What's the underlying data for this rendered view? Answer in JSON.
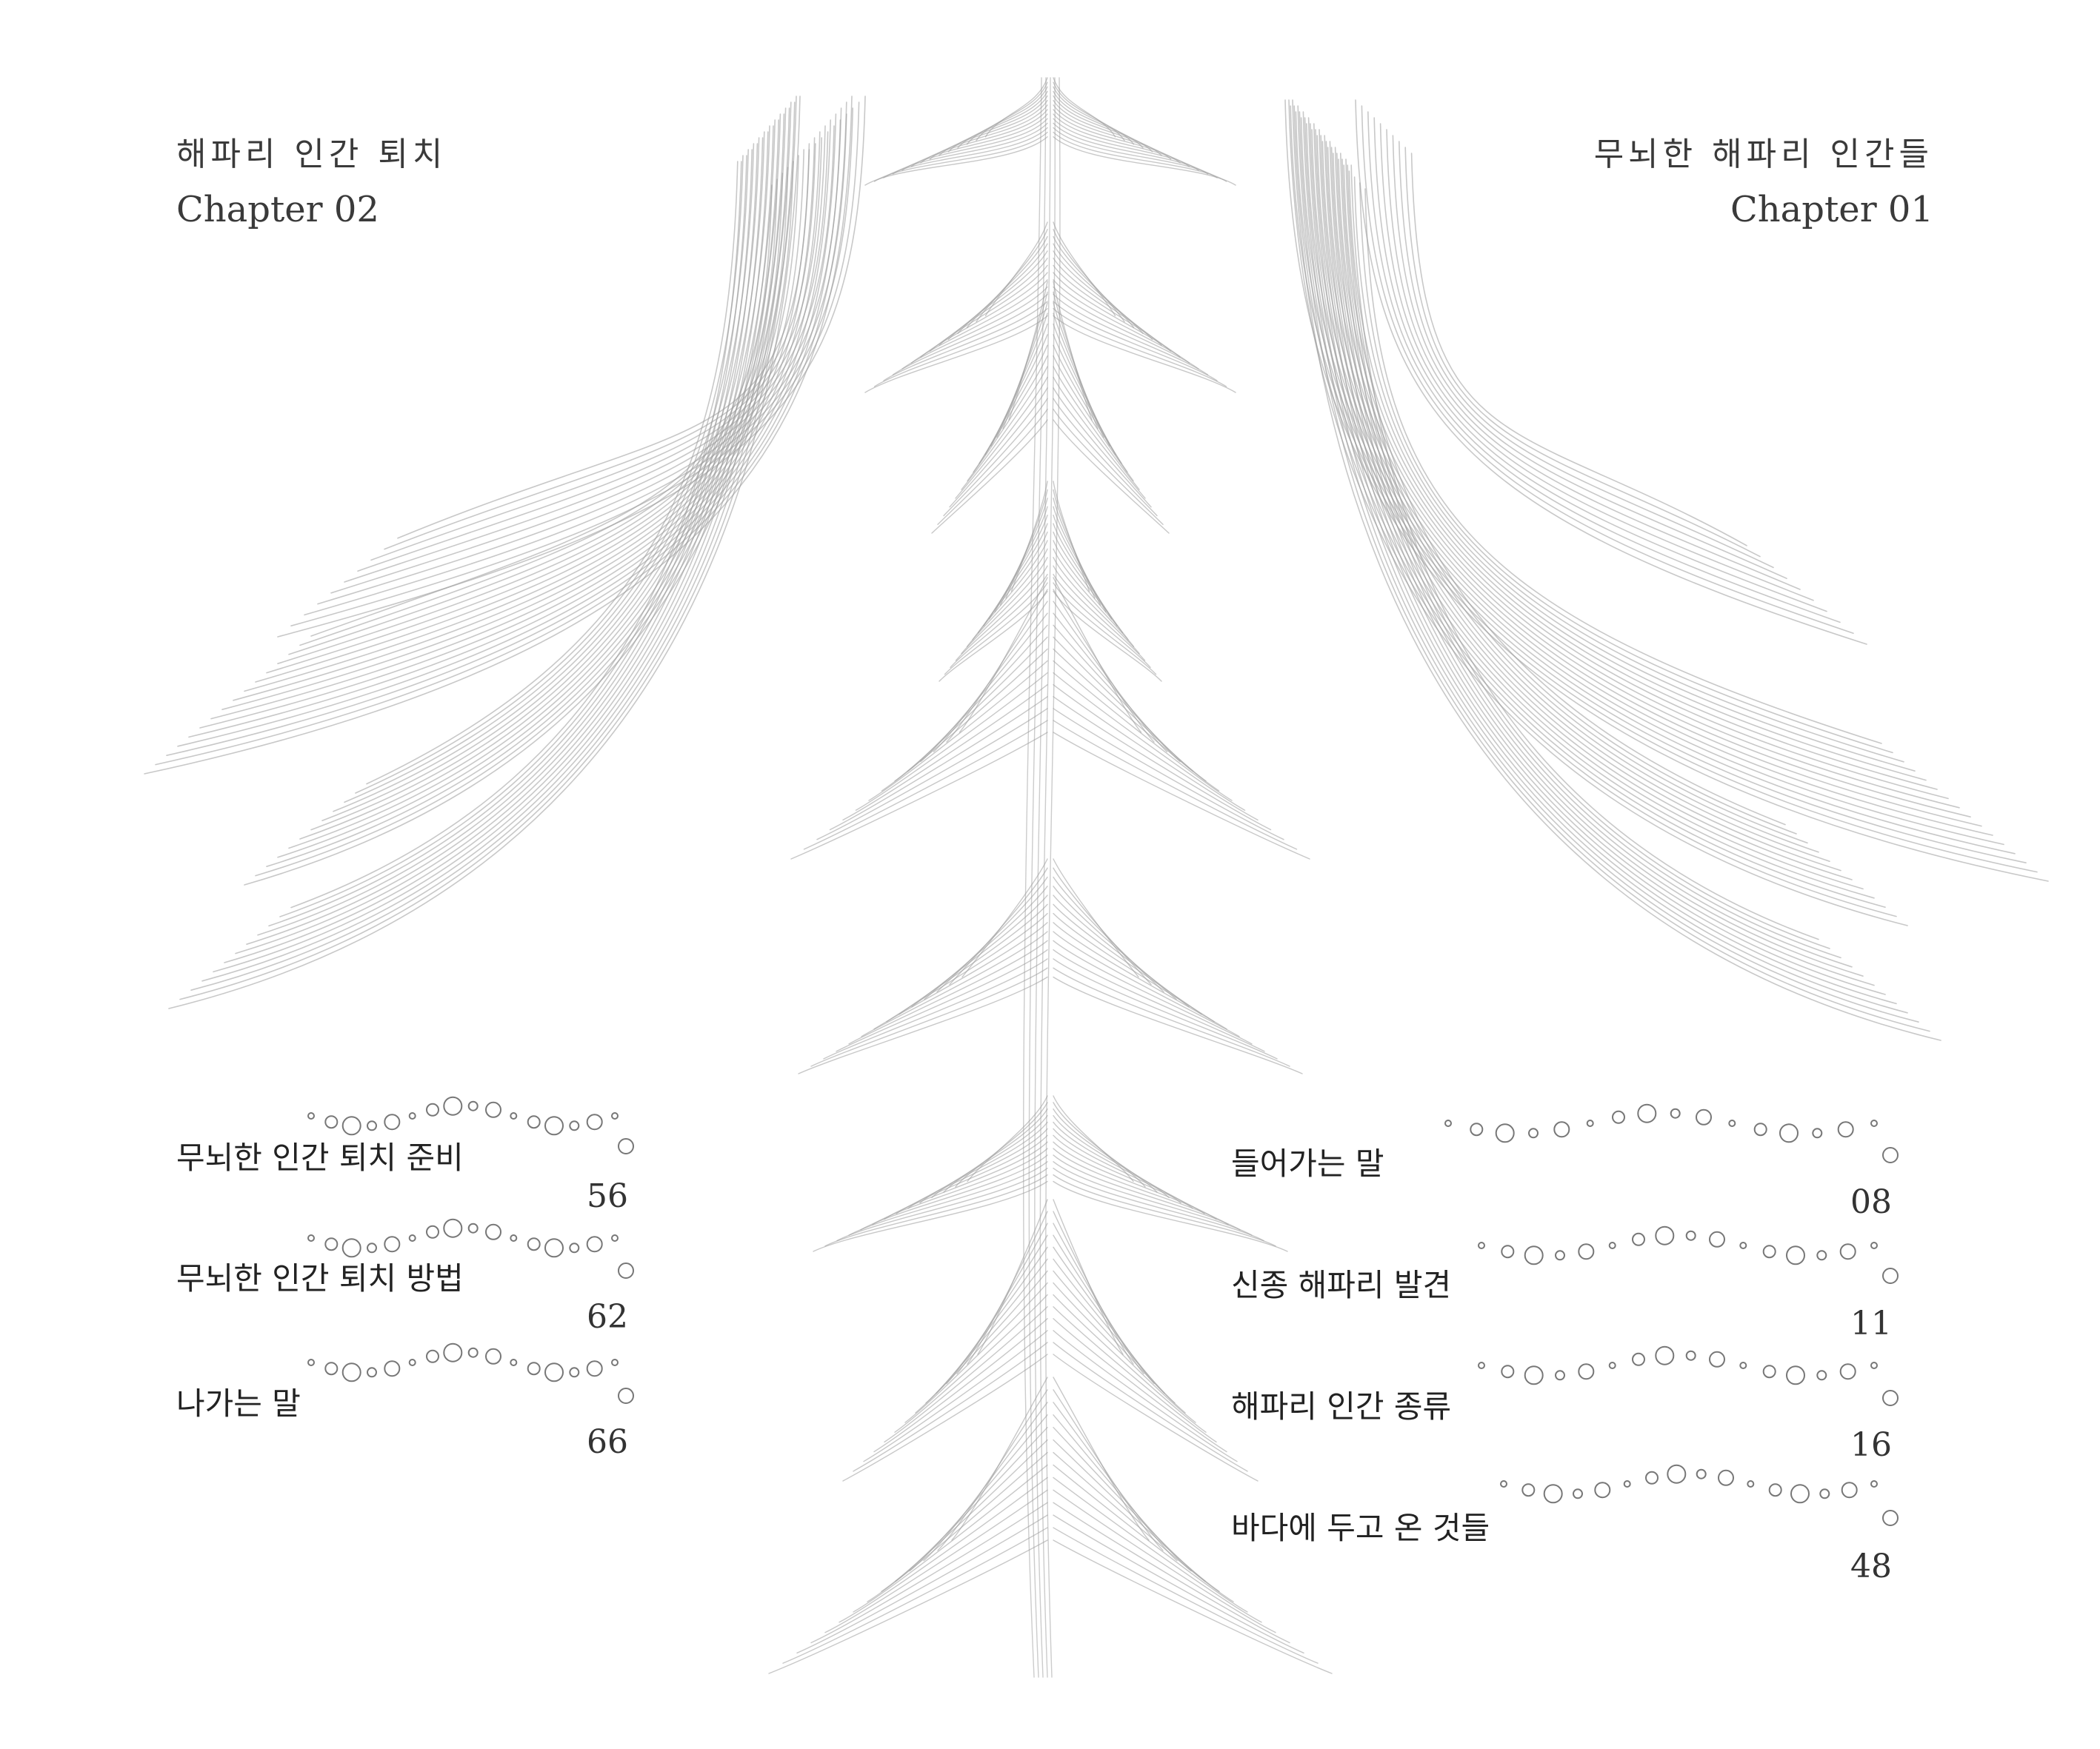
{
  "chapter_2": {
    "title": "해파리 인간 퇴치",
    "number": "Chapter 02"
  },
  "chapter_1": {
    "title": "무뇌한 해파리 인간들",
    "number": "Chapter 01"
  },
  "toc_chapter_2": [
    {
      "label": "무뇌한 인간 퇴치 준비",
      "page": "56"
    },
    {
      "label": "무뇌한 인간 퇴치 방법",
      "page": "62"
    },
    {
      "label": "나가는 말",
      "page": "66"
    }
  ],
  "toc_chapter_1": [
    {
      "label": "들어가는 말",
      "page": "08"
    },
    {
      "label": "신종 해파리 발견",
      "page": "11"
    },
    {
      "label": "해파리 인간 종류",
      "page": "16"
    },
    {
      "label": "바다에 두고 온 것들",
      "page": "48"
    }
  ],
  "colors": {
    "line_art": "#9a9a9a",
    "text": "#222222"
  }
}
